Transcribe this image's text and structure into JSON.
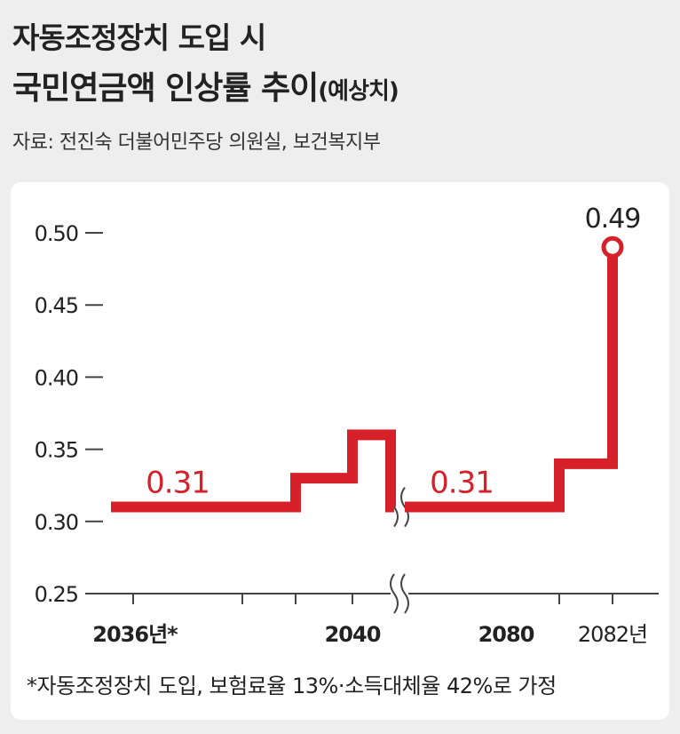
{
  "header": {
    "title_line1": "자동조정장치 도입 시",
    "title_line2": "국민연금액 인상률 추이",
    "title_line2_suffix": "(예상치)",
    "source": "자료: 전진숙 더불어민주당 의원실, 보건복지부"
  },
  "footnote": "*자동조정장치 도입, 보험료율 13%·소득대체율 42%로 가정",
  "colors": {
    "line": "#d6202a",
    "axis": "#444444",
    "text": "#222222",
    "background": "#eeeeee",
    "panel": "#ffffff"
  },
  "chart_data": {
    "type": "line",
    "step": true,
    "ylim": [
      0.25,
      0.5
    ],
    "yticks": [
      "0.50",
      "0.45",
      "0.40",
      "0.35",
      "0.30",
      "0.25"
    ],
    "xticks": [
      "2036년*",
      "2040",
      "2080",
      "2082년"
    ],
    "axis_break": true,
    "series": [
      {
        "points": [
          {
            "x": "2036",
            "y": 0.31
          },
          {
            "x": "2037",
            "y": 0.31
          },
          {
            "x": "2038",
            "y": 0.33
          },
          {
            "x": "2039",
            "y": 0.36
          },
          {
            "x": "2040",
            "y": 0.31
          },
          {
            "x": "2080",
            "y": 0.31
          },
          {
            "x": "2081",
            "y": 0.34
          },
          {
            "x": "2082",
            "y": 0.49
          }
        ]
      }
    ],
    "annotations": [
      "0.31",
      "0.31",
      "0.49"
    ]
  }
}
